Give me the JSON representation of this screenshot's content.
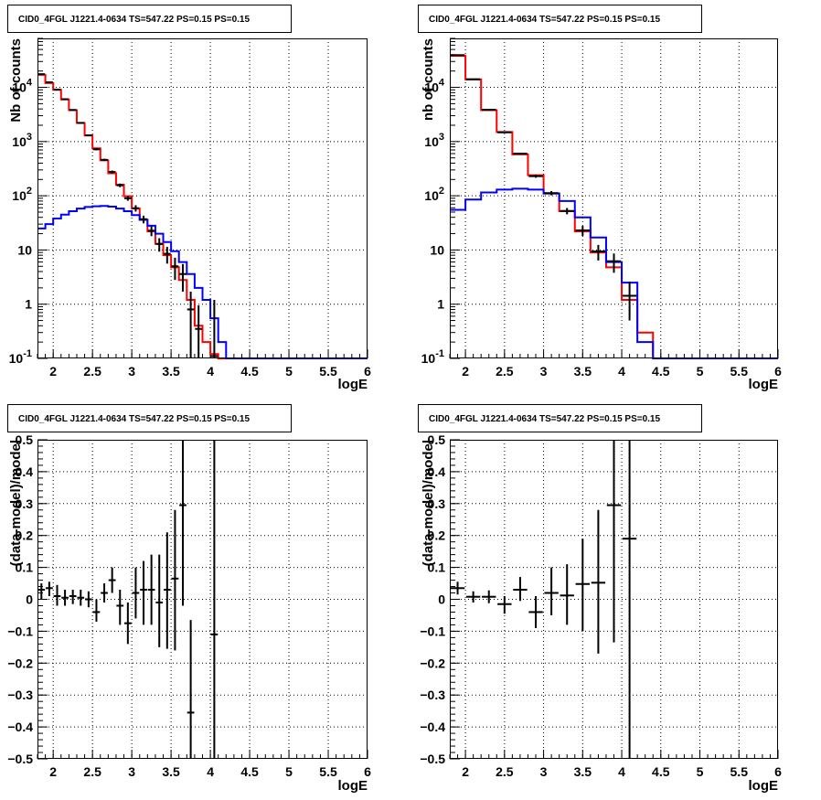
{
  "chart_data": [
    {
      "type": "histogram",
      "title": "CID0_4FGL J1221.4-0634 TS=547.22 PS=0.15 PS=0.15",
      "xlabel": "logE",
      "ylabel": "Nb of counts",
      "xlim": [
        1.8,
        6.0
      ],
      "ylim": [
        0.1,
        80000
      ],
      "yscale": "log",
      "grid": true,
      "xticks": [
        "2",
        "2.5",
        "3",
        "3.5",
        "4",
        "4.5",
        "5",
        "5.5",
        "6"
      ],
      "yticks": [
        "10^-1",
        "1",
        "10",
        "10^2",
        "10^3",
        "10^4"
      ],
      "bin_edges": [
        1.8,
        1.9,
        2.0,
        2.1,
        2.2,
        2.3,
        2.4,
        2.5,
        2.6,
        2.7,
        2.8,
        2.9,
        3.0,
        3.1,
        3.2,
        3.3,
        3.4,
        3.5,
        3.6,
        3.7,
        3.8,
        3.9,
        4.0,
        4.1,
        4.2,
        4.3,
        4.4,
        4.5,
        4.6,
        4.7,
        4.8,
        4.9,
        5.0,
        5.1,
        5.2,
        5.3,
        5.4,
        5.5,
        5.6,
        5.7,
        5.8,
        5.9,
        6.0
      ],
      "series": [
        {
          "name": "",
          "color": "#ff0000",
          "values": [
            17000,
            12000,
            9000,
            6000,
            3800,
            2200,
            1300,
            750,
            450,
            260,
            160,
            98,
            58,
            36,
            22,
            13,
            8,
            4.8,
            2.8,
            1.2,
            0.4,
            0.2,
            0.12,
            0.1,
            0.1,
            0.1,
            0.1,
            0.1,
            0.1,
            0.1,
            0.1,
            0.1,
            0.1,
            0.1,
            0.1,
            0.1,
            0.1,
            0.1,
            0.1,
            0.1,
            0.1,
            0.1
          ]
        },
        {
          "name": "",
          "color": "#0000ff",
          "values": [
            25,
            30,
            38,
            45,
            52,
            58,
            62,
            64,
            65,
            63,
            58,
            52,
            44,
            36,
            28,
            20,
            14,
            9.5,
            6,
            3.6,
            2,
            1.2,
            0.55,
            0.2,
            0.1,
            0.1,
            0.1,
            0.1,
            0.1,
            0.1,
            0.1,
            0.1,
            0.1,
            0.1,
            0.1,
            0.1,
            0.1,
            0.1,
            0.1,
            0.1,
            0.1,
            0.1
          ]
        }
      ],
      "data_points": [
        {
          "x": 1.85,
          "y": 17500,
          "ylo": 17300,
          "yhi": 17700
        },
        {
          "x": 1.95,
          "y": 12400,
          "ylo": 12250,
          "yhi": 12550
        },
        {
          "x": 2.05,
          "y": 9100,
          "ylo": 8950,
          "yhi": 9250
        },
        {
          "x": 2.15,
          "y": 6050,
          "ylo": 5950,
          "yhi": 6150
        },
        {
          "x": 2.25,
          "y": 3830,
          "ylo": 3760,
          "yhi": 3900
        },
        {
          "x": 2.35,
          "y": 2210,
          "ylo": 2160,
          "yhi": 2260
        },
        {
          "x": 2.45,
          "y": 1300,
          "ylo": 1260,
          "yhi": 1340
        },
        {
          "x": 2.55,
          "y": 720,
          "ylo": 690,
          "yhi": 750
        },
        {
          "x": 2.65,
          "y": 460,
          "ylo": 438,
          "yhi": 482
        },
        {
          "x": 2.75,
          "y": 275,
          "ylo": 258,
          "yhi": 292
        },
        {
          "x": 2.85,
          "y": 156,
          "ylo": 144,
          "yhi": 168
        },
        {
          "x": 2.95,
          "y": 90,
          "ylo": 81,
          "yhi": 99
        },
        {
          "x": 3.05,
          "y": 59,
          "ylo": 51,
          "yhi": 67
        },
        {
          "x": 3.15,
          "y": 37,
          "ylo": 31,
          "yhi": 43
        },
        {
          "x": 3.25,
          "y": 22.7,
          "ylo": 18,
          "yhi": 27.5
        },
        {
          "x": 3.35,
          "y": 12.9,
          "ylo": 9.3,
          "yhi": 16.5
        },
        {
          "x": 3.45,
          "y": 8.5,
          "ylo": 5.6,
          "yhi": 11.4
        },
        {
          "x": 3.55,
          "y": 5,
          "ylo": 2.8,
          "yhi": 7.2
        },
        {
          "x": 3.65,
          "y": 3.6,
          "ylo": 1.7,
          "yhi": 5.5
        },
        {
          "x": 3.75,
          "y": 0.8,
          "ylo": 0.1,
          "yhi": 1.7
        },
        {
          "x": 3.85,
          "y": 0.35,
          "ylo": 0.1,
          "yhi": 0.95
        },
        {
          "x": 4.05,
          "y": 0.11,
          "ylo": 0.1,
          "yhi": 1.2
        }
      ]
    },
    {
      "type": "histogram",
      "title": "CID0_4FGL J1221.4-0634 TS=547.22 PS=0.15 PS=0.15",
      "xlabel": "logE",
      "ylabel": "nb of counts",
      "xlim": [
        1.8,
        6.0
      ],
      "ylim": [
        0.1,
        80000
      ],
      "yscale": "log",
      "grid": true,
      "xticks": [
        "2",
        "2.5",
        "3",
        "3.5",
        "4",
        "4.5",
        "5",
        "5.5",
        "6"
      ],
      "yticks": [
        "10^-1",
        "1",
        "10",
        "10^2",
        "10^3",
        "10^4"
      ],
      "bin_edges": [
        1.8,
        2.0,
        2.2,
        2.4,
        2.6,
        2.8,
        3.0,
        3.2,
        3.4,
        3.6,
        3.8,
        4.0,
        4.2,
        4.4,
        4.6,
        4.8,
        5.0,
        5.2,
        5.4,
        5.6,
        5.8,
        6.0
      ],
      "series": [
        {
          "name": "",
          "color": "#ff0000",
          "values": [
            38000,
            14000,
            3800,
            1500,
            580,
            240,
            110,
            52,
            22,
            9,
            4.8,
            1.2,
            0.3,
            0.1,
            0.1,
            0.1,
            0.1,
            0.1,
            0.1,
            0.1,
            0.1
          ]
        },
        {
          "name": "",
          "color": "#0000ff",
          "values": [
            55,
            85,
            115,
            130,
            135,
            130,
            110,
            80,
            40,
            17,
            6,
            2.5,
            0.2,
            0.1,
            0.1,
            0.1,
            0.1,
            0.1,
            0.1,
            0.1,
            0.1
          ]
        }
      ],
      "data_points": [
        {
          "x": 1.9,
          "y": 39300,
          "ylo": 39100,
          "yhi": 39500
        },
        {
          "x": 2.1,
          "y": 14100,
          "ylo": 13980,
          "yhi": 14220
        },
        {
          "x": 2.3,
          "y": 3860,
          "ylo": 3800,
          "yhi": 3920
        },
        {
          "x": 2.5,
          "y": 1480,
          "ylo": 1440,
          "yhi": 1520
        },
        {
          "x": 2.7,
          "y": 600,
          "ylo": 575,
          "yhi": 625
        },
        {
          "x": 2.9,
          "y": 230,
          "ylo": 215,
          "yhi": 245
        },
        {
          "x": 3.1,
          "y": 112,
          "ylo": 102,
          "yhi": 122
        },
        {
          "x": 3.3,
          "y": 52.5,
          "ylo": 45.5,
          "yhi": 59.5
        },
        {
          "x": 3.5,
          "y": 23,
          "ylo": 18.2,
          "yhi": 27.8
        },
        {
          "x": 3.7,
          "y": 9.4,
          "ylo": 6.4,
          "yhi": 12.4
        },
        {
          "x": 3.9,
          "y": 6.2,
          "ylo": 3.8,
          "yhi": 8.6
        },
        {
          "x": 4.1,
          "y": 1.43,
          "ylo": 0.5,
          "yhi": 2.6
        }
      ]
    },
    {
      "type": "scatter",
      "title": "CID0_4FGL J1221.4-0634 TS=547.22 PS=0.15 PS=0.15",
      "xlabel": "logE",
      "ylabel": "(data-model)/model",
      "xlim": [
        1.8,
        6.0
      ],
      "ylim": [
        -0.5,
        0.5
      ],
      "grid": true,
      "xticks": [
        "2",
        "2.5",
        "3",
        "3.5",
        "4",
        "4.5",
        "5",
        "5.5",
        "6"
      ],
      "yticks": [
        "-0.5",
        "-0.4",
        "-0.3",
        "-0.2",
        "-0.1",
        "0",
        "0.1",
        "0.2",
        "0.3",
        "0.4",
        "0.5"
      ],
      "data_points": [
        {
          "x": 1.85,
          "y": 0.03,
          "ylo": 0.0,
          "yhi": 0.05
        },
        {
          "x": 1.95,
          "y": 0.035,
          "ylo": 0.01,
          "yhi": 0.055
        },
        {
          "x": 2.05,
          "y": 0.01,
          "ylo": -0.02,
          "yhi": 0.045
        },
        {
          "x": 2.15,
          "y": 0.005,
          "ylo": -0.02,
          "yhi": 0.03
        },
        {
          "x": 2.25,
          "y": 0.01,
          "ylo": -0.015,
          "yhi": 0.03
        },
        {
          "x": 2.35,
          "y": 0.005,
          "ylo": -0.02,
          "yhi": 0.03
        },
        {
          "x": 2.45,
          "y": 0.0,
          "ylo": -0.025,
          "yhi": 0.025
        },
        {
          "x": 2.55,
          "y": -0.04,
          "ylo": -0.07,
          "yhi": 0.0
        },
        {
          "x": 2.65,
          "y": 0.02,
          "ylo": -0.01,
          "yhi": 0.05
        },
        {
          "x": 2.75,
          "y": 0.06,
          "ylo": 0.02,
          "yhi": 0.1
        },
        {
          "x": 2.85,
          "y": -0.02,
          "ylo": -0.08,
          "yhi": 0.03
        },
        {
          "x": 2.95,
          "y": -0.075,
          "ylo": -0.14,
          "yhi": -0.01
        },
        {
          "x": 3.05,
          "y": 0.02,
          "ylo": -0.06,
          "yhi": 0.1
        },
        {
          "x": 3.15,
          "y": 0.03,
          "ylo": -0.08,
          "yhi": 0.12
        },
        {
          "x": 3.25,
          "y": 0.03,
          "ylo": -0.08,
          "yhi": 0.14
        },
        {
          "x": 3.35,
          "y": -0.01,
          "ylo": -0.15,
          "yhi": 0.14
        },
        {
          "x": 3.45,
          "y": 0.03,
          "ylo": -0.155,
          "yhi": 0.21
        },
        {
          "x": 3.55,
          "y": 0.065,
          "ylo": -0.16,
          "yhi": 0.28
        },
        {
          "x": 3.65,
          "y": 0.295,
          "ylo": -0.02,
          "yhi": 0.5
        },
        {
          "x": 3.75,
          "y": -0.355,
          "ylo": -0.5,
          "yhi": -0.065
        },
        {
          "x": 4.05,
          "y": -0.11,
          "ylo": -0.5,
          "yhi": 0.5
        }
      ]
    },
    {
      "type": "scatter",
      "title": "CID0_4FGL J1221.4-0634 TS=547.22 PS=0.15 PS=0.15",
      "xlabel": "logE",
      "ylabel": "(data-model)/model",
      "xlim": [
        1.8,
        6.0
      ],
      "ylim": [
        -0.5,
        0.5
      ],
      "grid": true,
      "xticks": [
        "2",
        "2.5",
        "3",
        "3.5",
        "4",
        "4.5",
        "5",
        "5.5",
        "6"
      ],
      "yticks": [
        "-0.5",
        "-0.4",
        "-0.3",
        "-0.2",
        "-0.1",
        "0",
        "0.1",
        "0.2",
        "0.3",
        "0.4",
        "0.5"
      ],
      "data_points": [
        {
          "x": 1.9,
          "y": 0.035,
          "ylo": 0.015,
          "yhi": 0.055
        },
        {
          "x": 2.1,
          "y": 0.008,
          "ylo": -0.01,
          "yhi": 0.025
        },
        {
          "x": 2.3,
          "y": 0.008,
          "ylo": -0.012,
          "yhi": 0.028
        },
        {
          "x": 2.5,
          "y": -0.015,
          "ylo": -0.045,
          "yhi": 0.01
        },
        {
          "x": 2.7,
          "y": 0.03,
          "ylo": -0.005,
          "yhi": 0.07
        },
        {
          "x": 2.9,
          "y": -0.04,
          "ylo": -0.09,
          "yhi": 0.01
        },
        {
          "x": 3.1,
          "y": 0.02,
          "ylo": -0.05,
          "yhi": 0.1
        },
        {
          "x": 3.3,
          "y": 0.012,
          "ylo": -0.08,
          "yhi": 0.11
        },
        {
          "x": 3.5,
          "y": 0.048,
          "ylo": -0.1,
          "yhi": 0.19
        },
        {
          "x": 3.7,
          "y": 0.052,
          "ylo": -0.17,
          "yhi": 0.28
        },
        {
          "x": 3.9,
          "y": 0.295,
          "ylo": -0.135,
          "yhi": 0.5
        },
        {
          "x": 4.1,
          "y": 0.19,
          "ylo": -0.5,
          "yhi": 0.5
        }
      ]
    }
  ]
}
